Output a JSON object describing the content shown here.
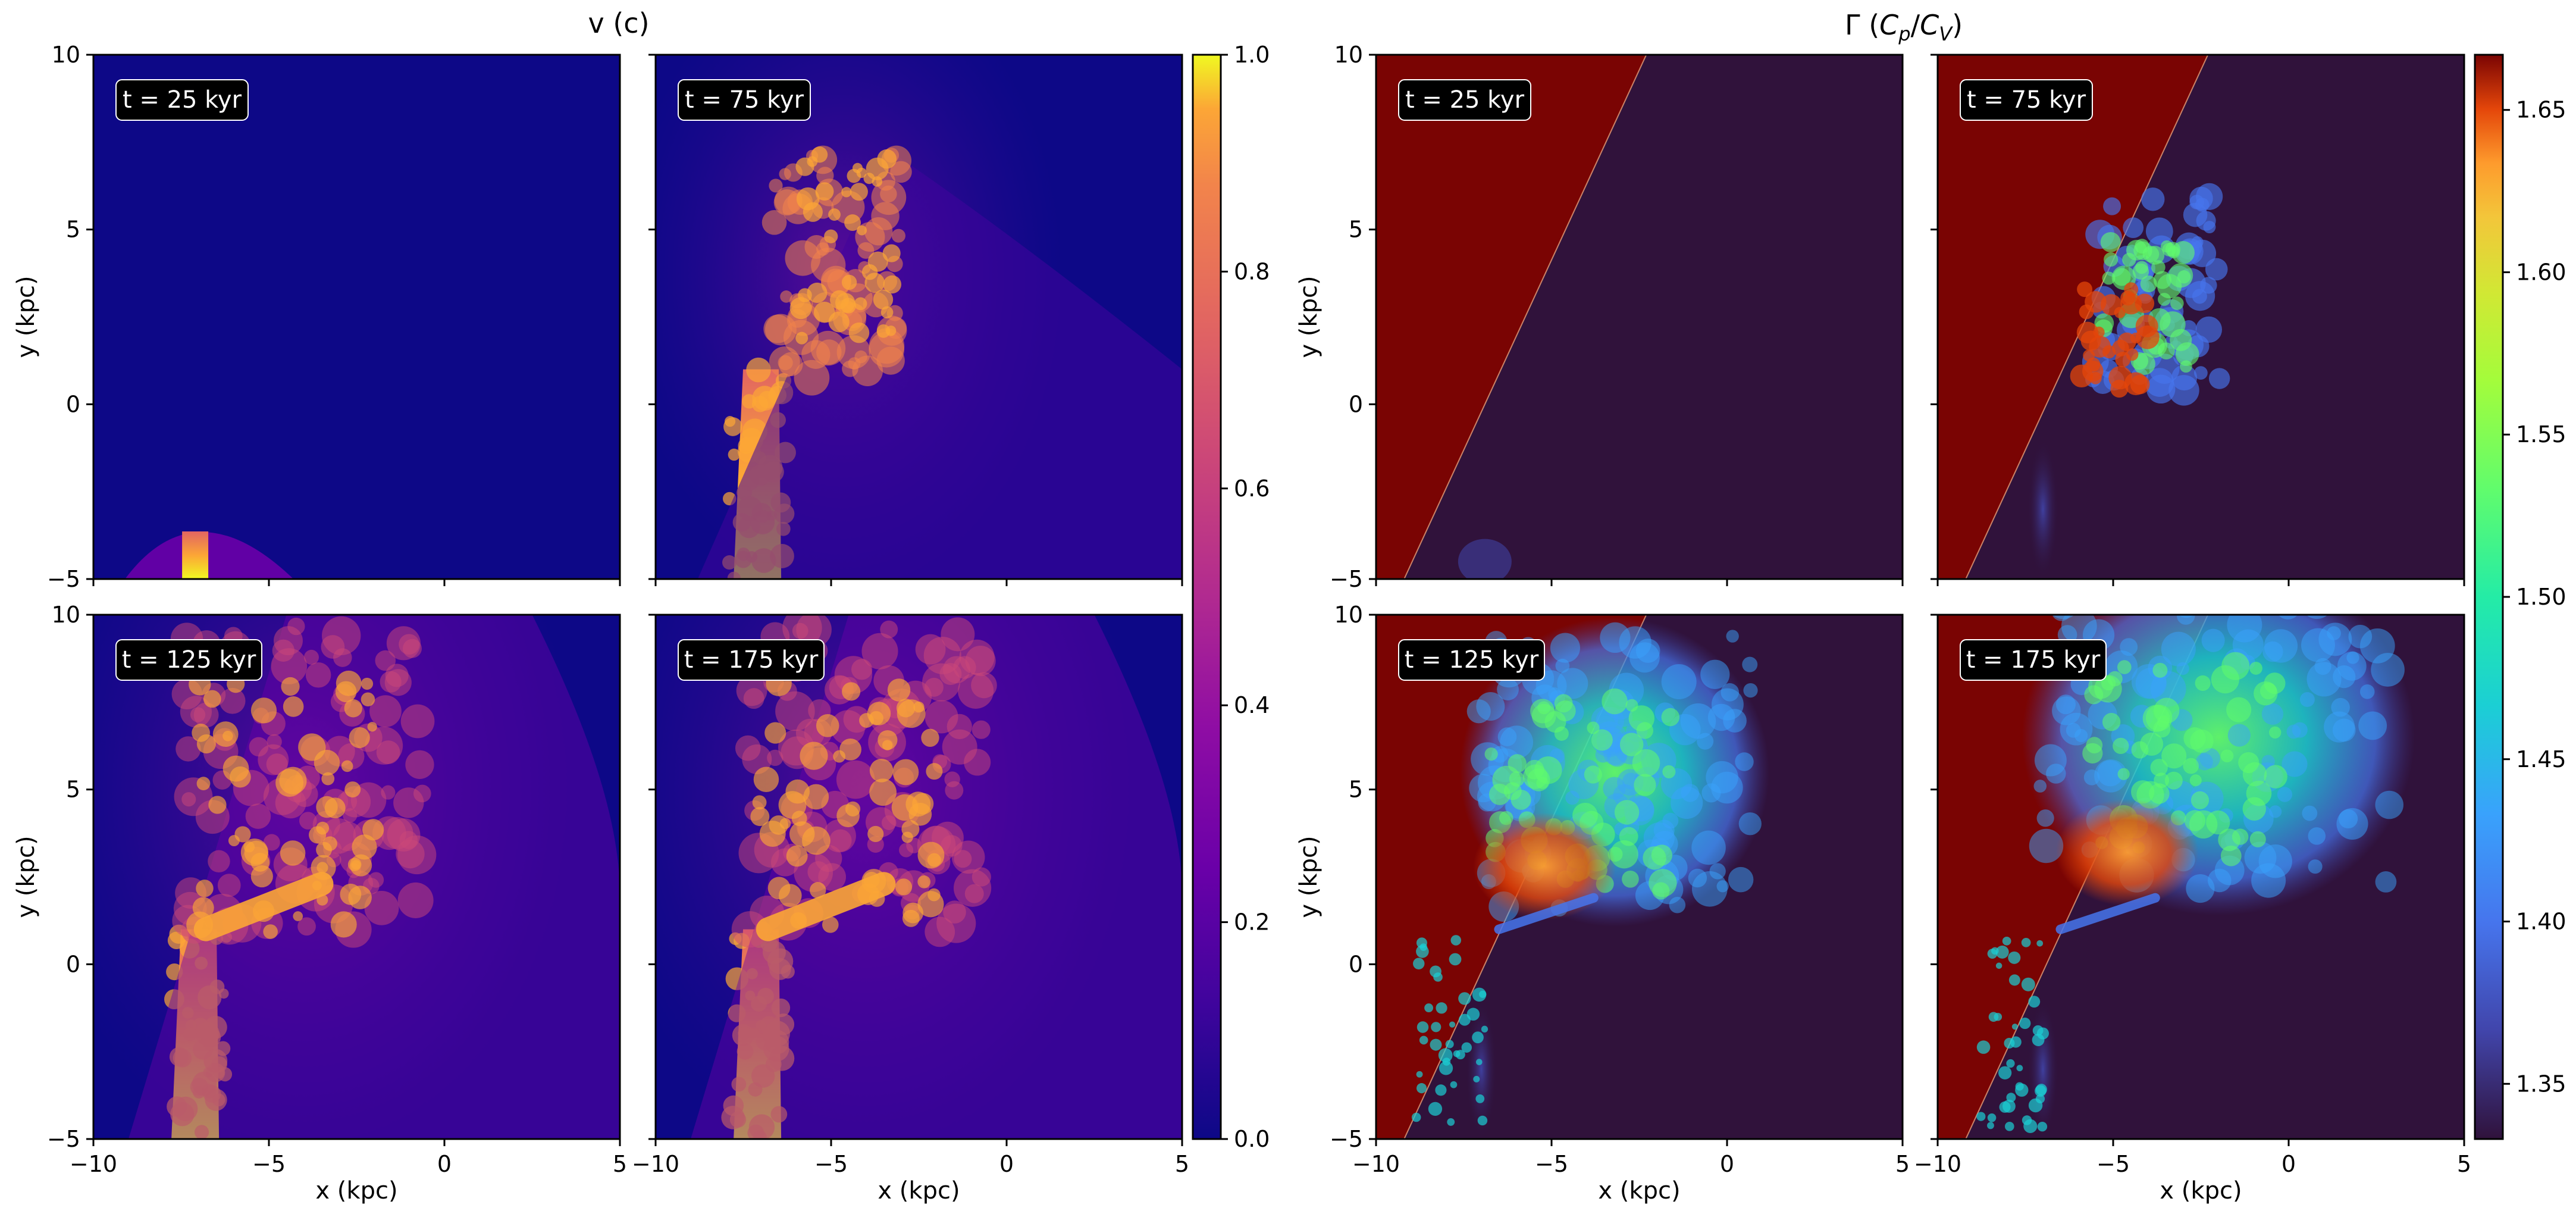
{
  "chart_data": [
    {
      "type": "heatmap",
      "title": "v (c)",
      "colormap": "plasma",
      "colorbar": {
        "range": [
          0.0,
          1.0
        ],
        "ticks": [
          "0.0",
          "0.2",
          "0.4",
          "0.6",
          "0.8",
          "1.0"
        ]
      },
      "xlabel": "x (kpc)",
      "ylabel": "y (kpc)",
      "xlim": [
        -10,
        5
      ],
      "ylim": [
        -5,
        10
      ],
      "xticks": [
        "−10",
        "−5",
        "0",
        "5"
      ],
      "yticks": [
        "−5",
        "0",
        "5",
        "10"
      ],
      "panels": [
        {
          "label": "t = 25 kyr",
          "time_kyr": 25
        },
        {
          "label": "t = 75 kyr",
          "time_kyr": 75
        },
        {
          "label": "t = 125 kyr",
          "time_kyr": 125
        },
        {
          "label": "t = 175 kyr",
          "time_kyr": 175
        }
      ]
    },
    {
      "type": "heatmap",
      "title": "Γ (C_p/C_V)",
      "title_main": "Γ (",
      "title_cp": "C",
      "title_cp_sub": "p",
      "title_slash": "/",
      "title_cv": "C",
      "title_cv_sub": "V",
      "title_close": ")",
      "colormap": "turbo",
      "colorbar": {
        "range": [
          1.333,
          1.667
        ],
        "ticks": [
          "1.35",
          "1.40",
          "1.45",
          "1.50",
          "1.55",
          "1.60",
          "1.65"
        ]
      },
      "xlabel": "x (kpc)",
      "ylabel": "y (kpc)",
      "xlim": [
        -10,
        5
      ],
      "ylim": [
        -5,
        10
      ],
      "xticks": [
        "−10",
        "−5",
        "0",
        "5"
      ],
      "yticks": [
        "−5",
        "0",
        "5",
        "10"
      ],
      "panels": [
        {
          "label": "t = 25 kyr",
          "time_kyr": 25
        },
        {
          "label": "t = 75 kyr",
          "time_kyr": 75
        },
        {
          "label": "t = 125 kyr",
          "time_kyr": 125
        },
        {
          "label": "t = 175 kyr",
          "time_kyr": 175
        }
      ]
    }
  ],
  "colors": {
    "plasma_background": "#0d0887",
    "plasma_mid": "#9c179e",
    "plasma_high": "#ed7953",
    "plasma_top": "#f0f921",
    "gamma_ambient": "#30123b",
    "gamma_wedge": "#7a0403",
    "badge_fill": "#000000",
    "badge_border": "#ffffff"
  }
}
